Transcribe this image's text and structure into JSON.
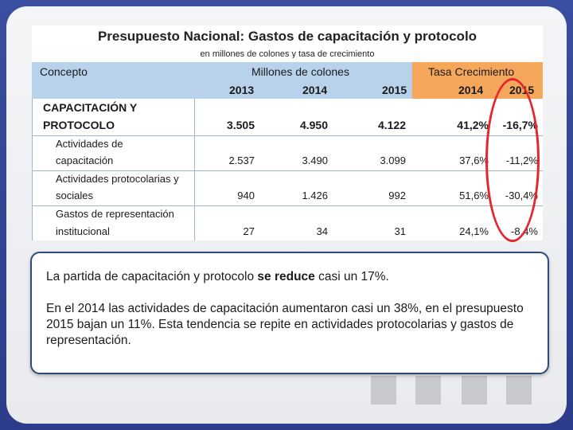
{
  "table": {
    "title": "Presupuesto Nacional: Gastos de capacitación y protocolo",
    "subtitle": "en millones de colones y tasa de crecimiento",
    "header": {
      "concepto": "Concepto",
      "millones": "Millones de colones",
      "tasa": "Tasa Crecimiento",
      "years_millones": [
        "2013",
        "2014",
        "2015"
      ],
      "years_tasa": [
        "2014",
        "2015"
      ]
    },
    "rows": [
      {
        "concepto_l1": "CAPACITACIÓN Y",
        "concepto_l2": "PROTOCOLO",
        "v2013": "3.505",
        "v2014": "4.950",
        "v2015": "4.122",
        "t2014": "41,2%",
        "t2015": "-16,7%"
      },
      {
        "concepto_l1": "Actividades de",
        "concepto_l2": "capacitación",
        "v2013": "2.537",
        "v2014": "3.490",
        "v2015": "3.099",
        "t2014": "37,6%",
        "t2015": "-11,2%"
      },
      {
        "concepto_l1": "Actividades protocolarias y",
        "concepto_l2": "sociales",
        "v2013": "940",
        "v2014": "1.426",
        "v2015": "992",
        "t2014": "51,6%",
        "t2015": "-30,4%"
      },
      {
        "concepto_l1": "Gastos de representación",
        "concepto_l2": "institucional",
        "v2013": "27",
        "v2014": "34",
        "v2015": "31",
        "t2014": "24,1%",
        "t2015": "-8,4%"
      }
    ]
  },
  "textbox": {
    "p1_before": "La partida de capacitación y protocolo ",
    "p1_bold": "se reduce",
    "p1_after": " casi un 17%.",
    "p2": "En el 2014 las actividades de capacitación aumentaron casi un 38%, en el presupuesto 2015 bajan un 11%. Esta tendencia se repite en actividades protocolarias y gastos de representación."
  },
  "colors": {
    "frame_blue": "#2b3c8a",
    "header_blue": "#b8d2ec",
    "header_orange": "#f5a85c",
    "highlight_red": "#e8242c",
    "textbox_border": "#2e4a7d"
  }
}
